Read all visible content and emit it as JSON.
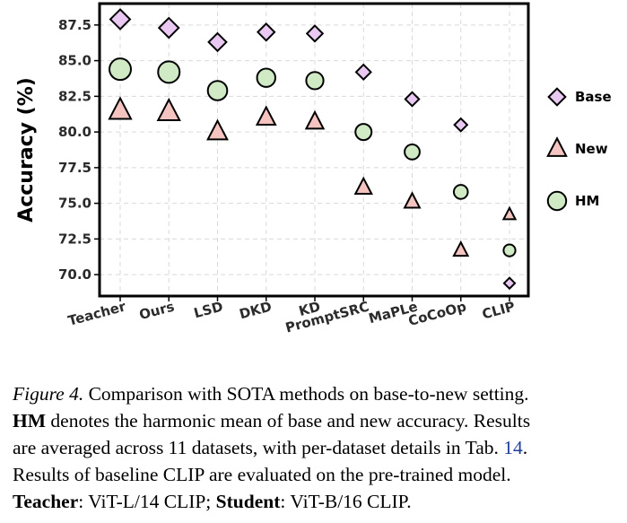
{
  "chart_data": {
    "type": "scatter",
    "ylabel": "Accuracy (%)",
    "xlabel": "",
    "ylim": [
      68.5,
      89.0
    ],
    "yticks": [
      "70.0",
      "72.5",
      "75.0",
      "77.5",
      "80.0",
      "82.5",
      "85.0",
      "87.5"
    ],
    "grid": true,
    "legend_position": "right",
    "categories": [
      "Teacher",
      "Ours",
      "LSD",
      "DKD",
      "KD",
      "PromptSRC",
      "MaPLe",
      "CoCoOp",
      "CLIP"
    ],
    "series": [
      {
        "name": "Base",
        "marker": "diamond",
        "color": "#e9c8f2",
        "values": [
          87.9,
          87.3,
          86.3,
          87.0,
          86.9,
          84.2,
          82.3,
          80.5,
          69.4
        ]
      },
      {
        "name": "New",
        "marker": "triangle",
        "color": "#f6c4c0",
        "values": [
          81.5,
          81.4,
          80.0,
          81.0,
          80.7,
          76.1,
          75.1,
          71.7,
          74.2
        ]
      },
      {
        "name": "HM",
        "marker": "circle",
        "color": "#cfeac4",
        "values": [
          84.4,
          84.2,
          82.9,
          83.8,
          83.6,
          80.0,
          78.6,
          75.8,
          71.7
        ]
      }
    ],
    "marker_scale": [
      1.0,
      1.0,
      0.9,
      0.85,
      0.8,
      0.75,
      0.7,
      0.65,
      0.55
    ]
  },
  "caption": {
    "line1_italic": "Figure 4.",
    "line1_rest": " Comparison with SOTA methods on base-to-new setting.",
    "line2_bold": "HM",
    "line2_rest": " denotes the harmonic mean of base and new accuracy. Results",
    "line3_pre": "are averaged across 11 datasets, with per-dataset details in Tab. ",
    "line3_ref": "14",
    "line3_post": ".",
    "line4": "Results of baseline CLIP are evaluated on the pre-trained model.",
    "line5_bold1": "Teacher",
    "line5_mid": ":  ViT-L/14 CLIP; ",
    "line5_bold2": "Student",
    "line5_end": ":  ViT-B/16 CLIP."
  }
}
